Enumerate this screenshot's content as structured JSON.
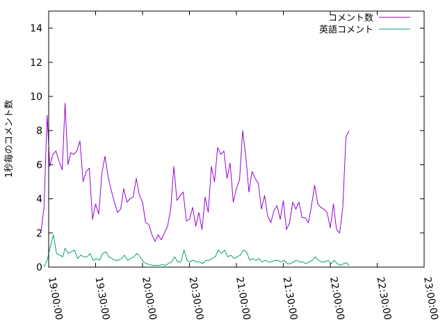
{
  "chart_data": {
    "type": "line",
    "title": "",
    "xlabel": "",
    "ylabel": "1秒毎のコメント数",
    "ylim": [
      0,
      15
    ],
    "yticks": [
      0,
      2,
      4,
      6,
      8,
      10,
      12,
      14
    ],
    "ytick_labels": [
      "0",
      "2",
      "4",
      "6",
      "8",
      "10",
      "12",
      "14"
    ],
    "xlim": [
      "19:00:00",
      "23:00:00"
    ],
    "xtick_labels": [
      "19:00:00",
      "19:30:00",
      "20:00:00",
      "20:30:00",
      "21:00:00",
      "21:30:00",
      "22:00:00",
      "22:30:00",
      "23:00:00"
    ],
    "grid": false,
    "legend": "top-right",
    "series": [
      {
        "name": "コメント数",
        "color": "#9400d3",
        "points": [
          [
            "18:55:00",
            2.0
          ],
          [
            "18:57:00",
            3.5
          ],
          [
            "18:59:00",
            8.9
          ],
          [
            "19:00:40",
            5.9
          ],
          [
            "19:02:40",
            6.6
          ],
          [
            "19:04:40",
            6.8
          ],
          [
            "19:06:40",
            6.2
          ],
          [
            "19:08:40",
            5.7
          ],
          [
            "19:10:30",
            9.6
          ],
          [
            "19:12:20",
            6.0
          ],
          [
            "19:14:10",
            6.7
          ],
          [
            "19:16:00",
            6.6
          ],
          [
            "19:18:00",
            6.8
          ],
          [
            "19:20:00",
            7.4
          ],
          [
            "19:22:00",
            5.0
          ],
          [
            "19:24:00",
            5.6
          ],
          [
            "19:26:00",
            5.8
          ],
          [
            "19:28:00",
            2.8
          ],
          [
            "19:30:00",
            3.7
          ],
          [
            "19:32:00",
            3.1
          ],
          [
            "19:34:00",
            5.5
          ],
          [
            "19:36:00",
            6.5
          ],
          [
            "19:38:00",
            5.3
          ],
          [
            "19:40:00",
            4.5
          ],
          [
            "19:42:00",
            3.8
          ],
          [
            "19:44:00",
            3.2
          ],
          [
            "19:46:00",
            3.4
          ],
          [
            "19:48:00",
            4.6
          ],
          [
            "19:50:00",
            3.8
          ],
          [
            "19:52:00",
            4.0
          ],
          [
            "19:54:00",
            4.1
          ],
          [
            "19:56:00",
            5.2
          ],
          [
            "19:58:00",
            4.2
          ],
          [
            "20:00:00",
            3.8
          ],
          [
            "20:02:00",
            2.6
          ],
          [
            "20:04:00",
            2.5
          ],
          [
            "20:06:00",
            1.9
          ],
          [
            "20:08:00",
            1.5
          ],
          [
            "20:10:00",
            1.9
          ],
          [
            "20:12:00",
            1.6
          ],
          [
            "20:14:00",
            2.0
          ],
          [
            "20:16:00",
            2.4
          ],
          [
            "20:18:00",
            3.4
          ],
          [
            "20:20:00",
            5.9
          ],
          [
            "20:22:00",
            3.9
          ],
          [
            "20:24:00",
            4.2
          ],
          [
            "20:26:00",
            4.4
          ],
          [
            "20:28:00",
            2.7
          ],
          [
            "20:30:00",
            2.8
          ],
          [
            "20:32:00",
            3.5
          ],
          [
            "20:34:00",
            2.4
          ],
          [
            "20:36:00",
            3.2
          ],
          [
            "20:38:00",
            2.2
          ],
          [
            "20:40:00",
            4.1
          ],
          [
            "20:42:00",
            3.2
          ],
          [
            "20:44:00",
            5.9
          ],
          [
            "20:46:00",
            5.0
          ],
          [
            "20:48:00",
            7.0
          ],
          [
            "20:50:00",
            6.6
          ],
          [
            "20:52:00",
            6.8
          ],
          [
            "20:54:00",
            5.2
          ],
          [
            "20:56:00",
            6.1
          ],
          [
            "20:58:00",
            3.8
          ],
          [
            "21:00:00",
            4.6
          ],
          [
            "21:02:00",
            5.1
          ],
          [
            "21:04:00",
            8.0
          ],
          [
            "21:06:00",
            6.5
          ],
          [
            "21:08:00",
            4.4
          ],
          [
            "21:10:00",
            5.6
          ],
          [
            "21:12:00",
            5.2
          ],
          [
            "21:14:00",
            4.9
          ],
          [
            "21:16:00",
            3.4
          ],
          [
            "21:18:00",
            4.2
          ],
          [
            "21:20:00",
            3.0
          ],
          [
            "21:22:00",
            2.6
          ],
          [
            "21:24:00",
            3.3
          ],
          [
            "21:26:00",
            3.6
          ],
          [
            "21:28:00",
            2.8
          ],
          [
            "21:30:00",
            3.9
          ],
          [
            "21:32:00",
            2.2
          ],
          [
            "21:34:00",
            2.6
          ],
          [
            "21:36:00",
            3.8
          ],
          [
            "21:38:00",
            3.4
          ],
          [
            "21:40:00",
            3.8
          ],
          [
            "21:42:00",
            2.9
          ],
          [
            "21:44:00",
            2.9
          ],
          [
            "21:46:00",
            2.6
          ],
          [
            "21:48:00",
            3.6
          ],
          [
            "21:50:00",
            4.8
          ],
          [
            "21:52:00",
            3.7
          ],
          [
            "21:54:00",
            3.5
          ],
          [
            "21:56:00",
            3.4
          ],
          [
            "21:58:00",
            3.2
          ],
          [
            "22:00:00",
            2.3
          ],
          [
            "22:02:00",
            3.7
          ],
          [
            "22:04:00",
            2.2
          ],
          [
            "22:06:00",
            2.0
          ],
          [
            "22:08:00",
            3.5
          ],
          [
            "22:10:00",
            7.6
          ],
          [
            "22:12:00",
            8.0
          ]
        ]
      },
      {
        "name": "英語コメント",
        "color": "#009e73",
        "points": [
          [
            "18:57:00",
            0.0
          ],
          [
            "18:59:00",
            0.4
          ],
          [
            "19:01:00",
            1.2
          ],
          [
            "19:03:00",
            1.9
          ],
          [
            "19:05:00",
            0.8
          ],
          [
            "19:07:00",
            0.7
          ],
          [
            "19:09:00",
            0.6
          ],
          [
            "19:10:30",
            1.1
          ],
          [
            "19:12:30",
            0.8
          ],
          [
            "19:14:30",
            0.9
          ],
          [
            "19:16:30",
            1.0
          ],
          [
            "19:18:30",
            0.5
          ],
          [
            "19:20:30",
            0.7
          ],
          [
            "19:22:30",
            0.6
          ],
          [
            "19:24:30",
            0.6
          ],
          [
            "19:26:30",
            0.8
          ],
          [
            "19:28:30",
            0.4
          ],
          [
            "19:30:30",
            0.5
          ],
          [
            "19:32:30",
            0.4
          ],
          [
            "19:34:30",
            0.8
          ],
          [
            "19:36:30",
            0.9
          ],
          [
            "19:38:30",
            0.6
          ],
          [
            "19:40:30",
            0.5
          ],
          [
            "19:42:30",
            0.4
          ],
          [
            "19:44:30",
            0.4
          ],
          [
            "19:46:30",
            0.5
          ],
          [
            "19:48:30",
            0.7
          ],
          [
            "19:50:30",
            0.4
          ],
          [
            "19:52:30",
            0.5
          ],
          [
            "19:54:30",
            0.6
          ],
          [
            "19:56:30",
            0.8
          ],
          [
            "19:58:30",
            0.6
          ],
          [
            "20:00:30",
            0.3
          ],
          [
            "20:02:30",
            0.2
          ],
          [
            "20:04:30",
            0.15
          ],
          [
            "20:06:30",
            0.1
          ],
          [
            "20:08:30",
            0.1
          ],
          [
            "20:10:30",
            0.1
          ],
          [
            "20:12:30",
            0.15
          ],
          [
            "20:14:30",
            0.1
          ],
          [
            "20:16:30",
            0.2
          ],
          [
            "20:18:30",
            0.3
          ],
          [
            "20:20:30",
            0.6
          ],
          [
            "20:22:30",
            0.3
          ],
          [
            "20:24:30",
            0.3
          ],
          [
            "20:26:30",
            1.0
          ],
          [
            "20:28:30",
            0.4
          ],
          [
            "20:30:30",
            0.3
          ],
          [
            "20:32:30",
            0.4
          ],
          [
            "20:34:30",
            0.3
          ],
          [
            "20:36:30",
            0.3
          ],
          [
            "20:38:30",
            0.2
          ],
          [
            "20:40:30",
            0.4
          ],
          [
            "20:42:30",
            0.4
          ],
          [
            "20:44:30",
            0.5
          ],
          [
            "20:46:30",
            0.6
          ],
          [
            "20:48:30",
            1.0
          ],
          [
            "20:50:30",
            0.8
          ],
          [
            "20:52:30",
            1.0
          ],
          [
            "20:54:30",
            0.6
          ],
          [
            "20:56:30",
            0.7
          ],
          [
            "20:58:30",
            0.5
          ],
          [
            "21:00:30",
            0.6
          ],
          [
            "21:02:30",
            0.7
          ],
          [
            "21:04:30",
            1.0
          ],
          [
            "21:06:30",
            0.9
          ],
          [
            "21:08:30",
            0.4
          ],
          [
            "21:10:30",
            0.5
          ],
          [
            "21:12:30",
            0.4
          ],
          [
            "21:14:30",
            0.5
          ],
          [
            "21:16:30",
            0.3
          ],
          [
            "21:18:30",
            0.4
          ],
          [
            "21:20:30",
            0.3
          ],
          [
            "21:22:30",
            0.3
          ],
          [
            "21:24:30",
            0.4
          ],
          [
            "21:26:30",
            0.4
          ],
          [
            "21:28:30",
            0.3
          ],
          [
            "21:30:30",
            0.4
          ],
          [
            "21:32:30",
            0.2
          ],
          [
            "21:34:30",
            0.2
          ],
          [
            "21:36:30",
            0.3
          ],
          [
            "21:38:30",
            0.4
          ],
          [
            "21:40:30",
            0.3
          ],
          [
            "21:42:30",
            0.3
          ],
          [
            "21:44:30",
            0.2
          ],
          [
            "21:46:30",
            0.3
          ],
          [
            "21:48:30",
            0.4
          ],
          [
            "21:50:30",
            0.6
          ],
          [
            "21:52:30",
            0.4
          ],
          [
            "21:54:30",
            0.3
          ],
          [
            "21:56:30",
            0.3
          ],
          [
            "21:58:30",
            0.4
          ],
          [
            "22:00:30",
            0.2
          ],
          [
            "22:02:30",
            0.4
          ],
          [
            "22:04:30",
            0.2
          ],
          [
            "22:06:30",
            0.1
          ],
          [
            "22:08:30",
            0.2
          ],
          [
            "22:10:30",
            0.25
          ],
          [
            "22:12:00",
            0.1
          ]
        ]
      }
    ]
  }
}
